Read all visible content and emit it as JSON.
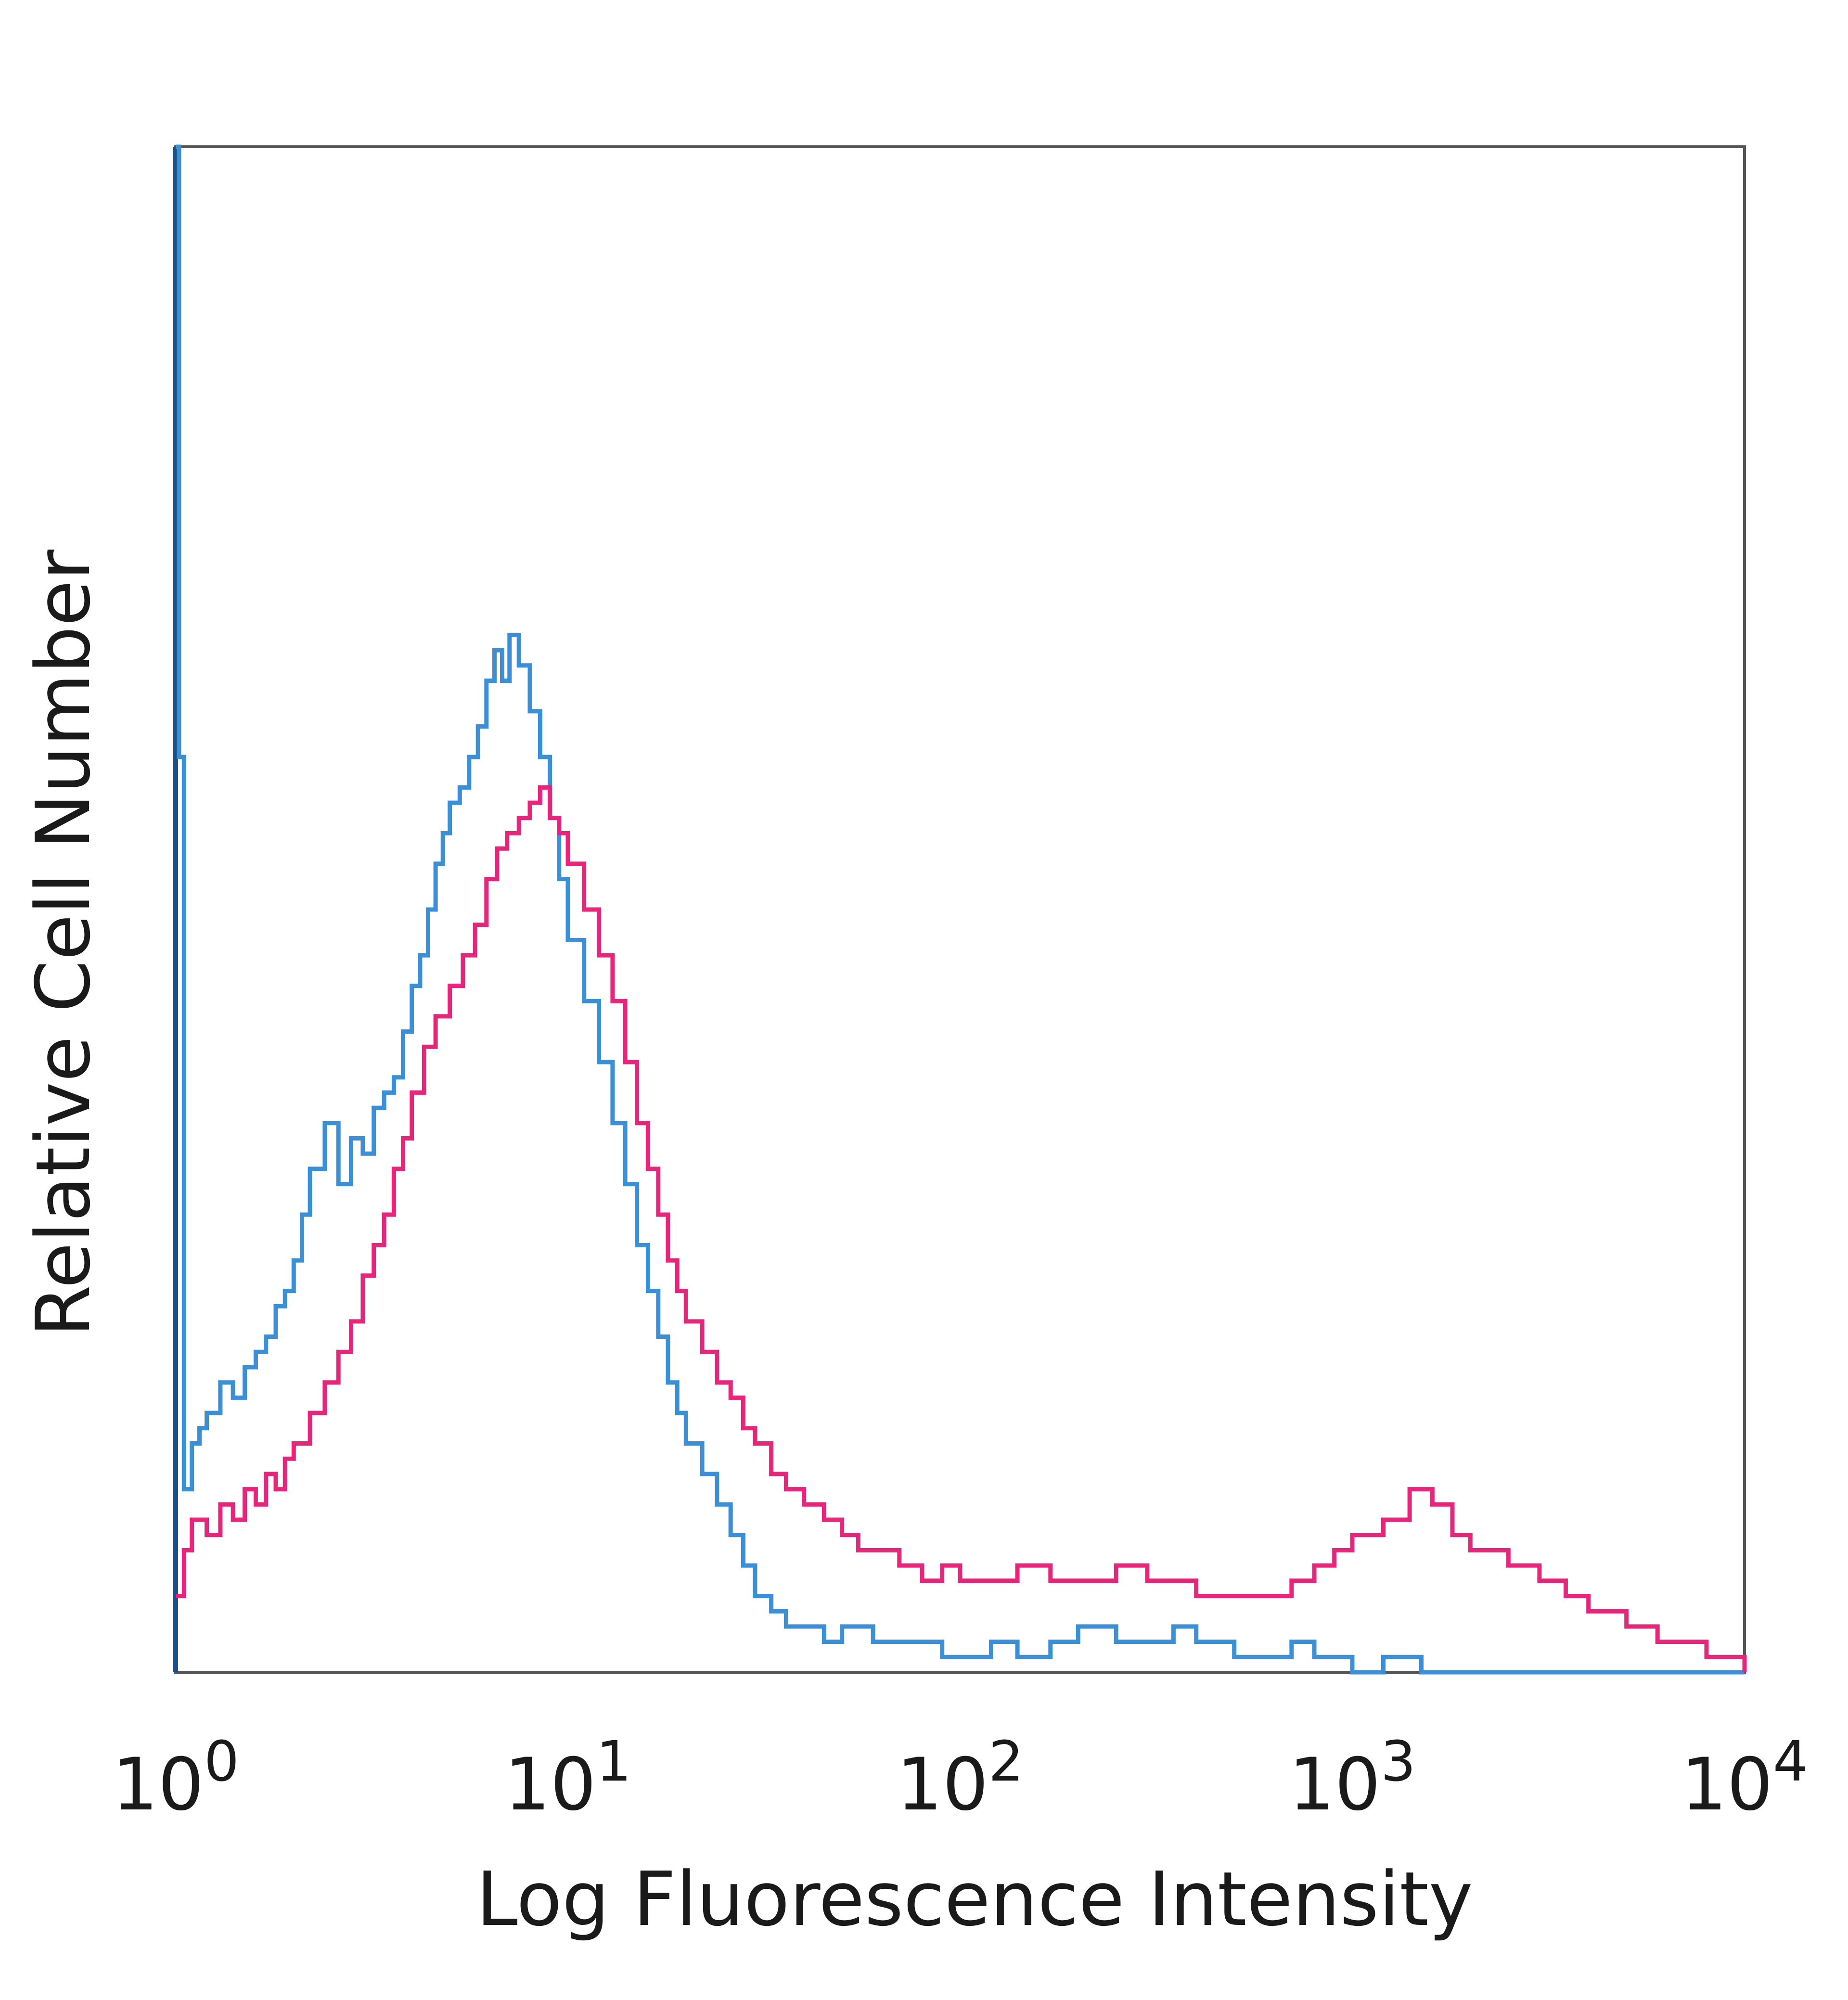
{
  "chart_data": {
    "type": "line",
    "title": "",
    "xlabel": "Log Fluorescence Intensity",
    "ylabel": "Relative Cell Number",
    "x_scale": "log",
    "xlim": [
      1,
      10000
    ],
    "ylim": [
      0,
      100
    ],
    "grid": false,
    "x_ticks": [
      {
        "value": 1,
        "base": "10",
        "exp": "0"
      },
      {
        "value": 10,
        "base": "10",
        "exp": "1"
      },
      {
        "value": 100,
        "base": "10",
        "exp": "2"
      },
      {
        "value": 1000,
        "base": "10",
        "exp": "3"
      },
      {
        "value": 10000,
        "base": "10",
        "exp": "4"
      }
    ],
    "series": [
      {
        "color": "#3a8fd6",
        "x": [
          1,
          1.02,
          1.05,
          1.1,
          1.15,
          1.2,
          1.3,
          1.4,
          1.5,
          1.6,
          1.7,
          1.8,
          1.9,
          2.0,
          2.1,
          2.2,
          2.4,
          2.6,
          2.8,
          3.0,
          3.2,
          3.4,
          3.6,
          3.8,
          4.0,
          4.2,
          4.4,
          4.6,
          4.8,
          5.0,
          5.3,
          5.6,
          5.9,
          6.2,
          6.5,
          6.8,
          7.1,
          7.5,
          8.0,
          8.5,
          9.0,
          9.5,
          10,
          11,
          12,
          13,
          14,
          15,
          16,
          17,
          18,
          19,
          20,
          22,
          24,
          26,
          28,
          30,
          33,
          36,
          40,
          45,
          50,
          60,
          70,
          80,
          90,
          100,
          120,
          140,
          170,
          200,
          250,
          300,
          350,
          400,
          500,
          600,
          700,
          800,
          1000,
          1200,
          1500,
          2000,
          3000,
          5000,
          10000
        ],
        "y": [
          100,
          60,
          12,
          15,
          16,
          17,
          19,
          18,
          20,
          21,
          22,
          24,
          25,
          27,
          30,
          33,
          36,
          32,
          35,
          34,
          37,
          38,
          39,
          42,
          45,
          47,
          50,
          53,
          55,
          57,
          58,
          60,
          62,
          65,
          67,
          65,
          68,
          66,
          63,
          60,
          56,
          52,
          48,
          44,
          40,
          36,
          32,
          28,
          25,
          22,
          19,
          17,
          15,
          13,
          11,
          9,
          7,
          5,
          4,
          3,
          3,
          2,
          3,
          2,
          2,
          2,
          1,
          1,
          2,
          1,
          2,
          3,
          2,
          2,
          3,
          2,
          1,
          1,
          2,
          1,
          0,
          1,
          0,
          0,
          0,
          0,
          0
        ]
      },
      {
        "color": "#e6267a",
        "x": [
          1,
          1.05,
          1.1,
          1.2,
          1.3,
          1.4,
          1.5,
          1.6,
          1.7,
          1.8,
          1.9,
          2.0,
          2.2,
          2.4,
          2.6,
          2.8,
          3.0,
          3.2,
          3.4,
          3.6,
          3.8,
          4.0,
          4.3,
          4.6,
          5.0,
          5.4,
          5.8,
          6.2,
          6.6,
          7.0,
          7.5,
          8.0,
          8.5,
          9.0,
          9.5,
          10,
          11,
          12,
          13,
          14,
          15,
          16,
          17,
          18,
          19,
          20,
          22,
          24,
          26,
          28,
          30,
          33,
          36,
          40,
          45,
          50,
          55,
          60,
          70,
          80,
          90,
          100,
          120,
          140,
          170,
          200,
          250,
          300,
          350,
          400,
          500,
          600,
          700,
          800,
          900,
          1000,
          1200,
          1400,
          1600,
          1800,
          2000,
          2500,
          3000,
          3500,
          4000,
          5000,
          6000,
          8000,
          10000
        ],
        "y": [
          5,
          8,
          10,
          9,
          11,
          10,
          12,
          11,
          13,
          12,
          14,
          15,
          17,
          19,
          21,
          23,
          26,
          28,
          30,
          33,
          35,
          38,
          41,
          43,
          45,
          47,
          49,
          52,
          54,
          55,
          56,
          57,
          58,
          56,
          55,
          53,
          50,
          47,
          44,
          40,
          36,
          33,
          30,
          27,
          25,
          23,
          21,
          19,
          18,
          16,
          15,
          13,
          12,
          11,
          10,
          9,
          8,
          8,
          7,
          6,
          7,
          6,
          6,
          7,
          6,
          6,
          7,
          6,
          6,
          5,
          5,
          5,
          6,
          7,
          8,
          9,
          10,
          12,
          11,
          9,
          8,
          7,
          6,
          5,
          4,
          3,
          2,
          1,
          0
        ]
      }
    ]
  }
}
